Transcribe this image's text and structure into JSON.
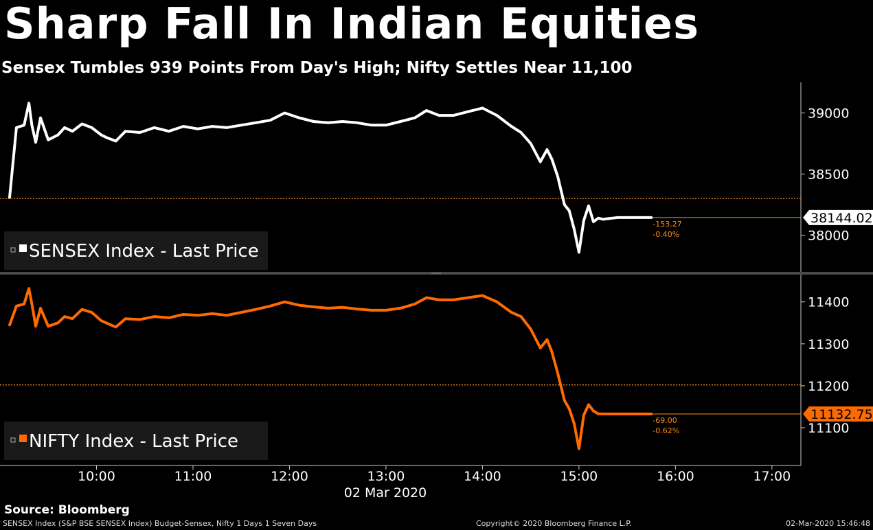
{
  "title": "Sharp Fall In Indian Equities",
  "subtitle": "Sensex Tumbles 939 Points From Day's High; Nifty Settles Near 11,100",
  "source": "Source: Bloomberg",
  "footer": {
    "left": "SENSEX Index (S&P BSE SENSEX Index) Budget-Sensex, Nifty 1 Days 1 Seven Days",
    "center": "Copyright© 2020 Bloomberg Finance L.P.",
    "right": "02-Mar-2020 15:46:48"
  },
  "colors": {
    "sensex": "#ffffff",
    "nifty": "#ff6a00",
    "ref": "#ff8c1a"
  },
  "chart_data": [
    {
      "type": "line",
      "name": "SENSEX Index - Last Price",
      "legend": "SENSEX Index - Last Price",
      "ylim": [
        37700,
        39250
      ],
      "yticks": [
        38000,
        38500,
        39000
      ],
      "ref_line": 38300,
      "last_value": "38144.02",
      "change": "-153.27",
      "change_pct": "-0.40%",
      "x": [
        9.1,
        9.17,
        9.25,
        9.3,
        9.33,
        9.37,
        9.42,
        9.5,
        9.6,
        9.67,
        9.75,
        9.85,
        9.95,
        10.05,
        10.1,
        10.2,
        10.3,
        10.45,
        10.6,
        10.75,
        10.9,
        11.05,
        11.2,
        11.35,
        11.5,
        11.65,
        11.8,
        11.95,
        12.1,
        12.25,
        12.4,
        12.55,
        12.7,
        12.85,
        13.0,
        13.15,
        13.3,
        13.42,
        13.55,
        13.7,
        13.85,
        14.0,
        14.15,
        14.3,
        14.4,
        14.5,
        14.6,
        14.67,
        14.72,
        14.78,
        14.85,
        14.9,
        14.95,
        15.0,
        15.05,
        15.1,
        15.15,
        15.2,
        15.25,
        15.3,
        15.35,
        15.4,
        15.45,
        15.5,
        15.6,
        15.7,
        15.75
      ],
      "y": [
        38310,
        38880,
        38900,
        39080,
        38900,
        38760,
        38960,
        38780,
        38820,
        38880,
        38850,
        38910,
        38880,
        38820,
        38800,
        38770,
        38850,
        38840,
        38880,
        38850,
        38890,
        38870,
        38890,
        38880,
        38900,
        38920,
        38940,
        39000,
        38960,
        38930,
        38920,
        38930,
        38920,
        38900,
        38900,
        38930,
        38960,
        39020,
        38980,
        38980,
        39010,
        39040,
        38980,
        38890,
        38840,
        38750,
        38600,
        38700,
        38620,
        38480,
        38250,
        38200,
        38050,
        37860,
        38120,
        38240,
        38110,
        38140,
        38130,
        38135,
        38140,
        38144.02,
        38144.02,
        38144.02,
        38144.02,
        38144.02,
        38144.02
      ]
    },
    {
      "type": "line",
      "name": "NIFTY Index - Last Price",
      "legend": "NIFTY Index - Last Price",
      "ylim": [
        11010,
        11465
      ],
      "yticks": [
        11100,
        11200,
        11300,
        11400
      ],
      "ref_line": 11202,
      "last_value": "11132.75",
      "change": "-69.00",
      "change_pct": "-0.62%",
      "x": [
        9.1,
        9.17,
        9.25,
        9.3,
        9.33,
        9.37,
        9.42,
        9.5,
        9.6,
        9.67,
        9.75,
        9.85,
        9.95,
        10.05,
        10.1,
        10.2,
        10.3,
        10.45,
        10.6,
        10.75,
        10.9,
        11.05,
        11.2,
        11.35,
        11.5,
        11.65,
        11.8,
        11.95,
        12.1,
        12.25,
        12.4,
        12.55,
        12.7,
        12.85,
        13.0,
        13.15,
        13.3,
        13.42,
        13.55,
        13.7,
        13.85,
        14.0,
        14.15,
        14.3,
        14.4,
        14.5,
        14.6,
        14.67,
        14.72,
        14.78,
        14.85,
        14.9,
        14.95,
        15.0,
        15.05,
        15.1,
        15.15,
        15.2,
        15.25,
        15.3,
        15.35,
        15.4,
        15.45,
        15.5,
        15.6,
        15.7,
        15.75
      ],
      "y": [
        11345,
        11390,
        11395,
        11432,
        11395,
        11342,
        11385,
        11342,
        11350,
        11365,
        11360,
        11382,
        11375,
        11355,
        11350,
        11340,
        11360,
        11358,
        11365,
        11362,
        11370,
        11368,
        11372,
        11368,
        11375,
        11382,
        11390,
        11400,
        11392,
        11388,
        11385,
        11387,
        11383,
        11380,
        11380,
        11385,
        11395,
        11410,
        11405,
        11405,
        11410,
        11415,
        11400,
        11375,
        11365,
        11335,
        11290,
        11310,
        11280,
        11230,
        11165,
        11145,
        11110,
        11050,
        11130,
        11155,
        11140,
        11133,
        11132.75,
        11132.75,
        11132.75,
        11132.75,
        11132.75,
        11132.75,
        11132.75,
        11132.75,
        11132.75
      ]
    }
  ],
  "x_axis": {
    "xlim": [
      9.0,
      17.3
    ],
    "ticks": [
      10,
      11,
      12,
      13,
      14,
      15,
      16,
      17
    ],
    "tick_labels": [
      "10:00",
      "11:00",
      "12:00",
      "13:00",
      "14:00",
      "15:00",
      "16:00",
      "17:00"
    ],
    "date_label": "02 Mar 2020"
  }
}
